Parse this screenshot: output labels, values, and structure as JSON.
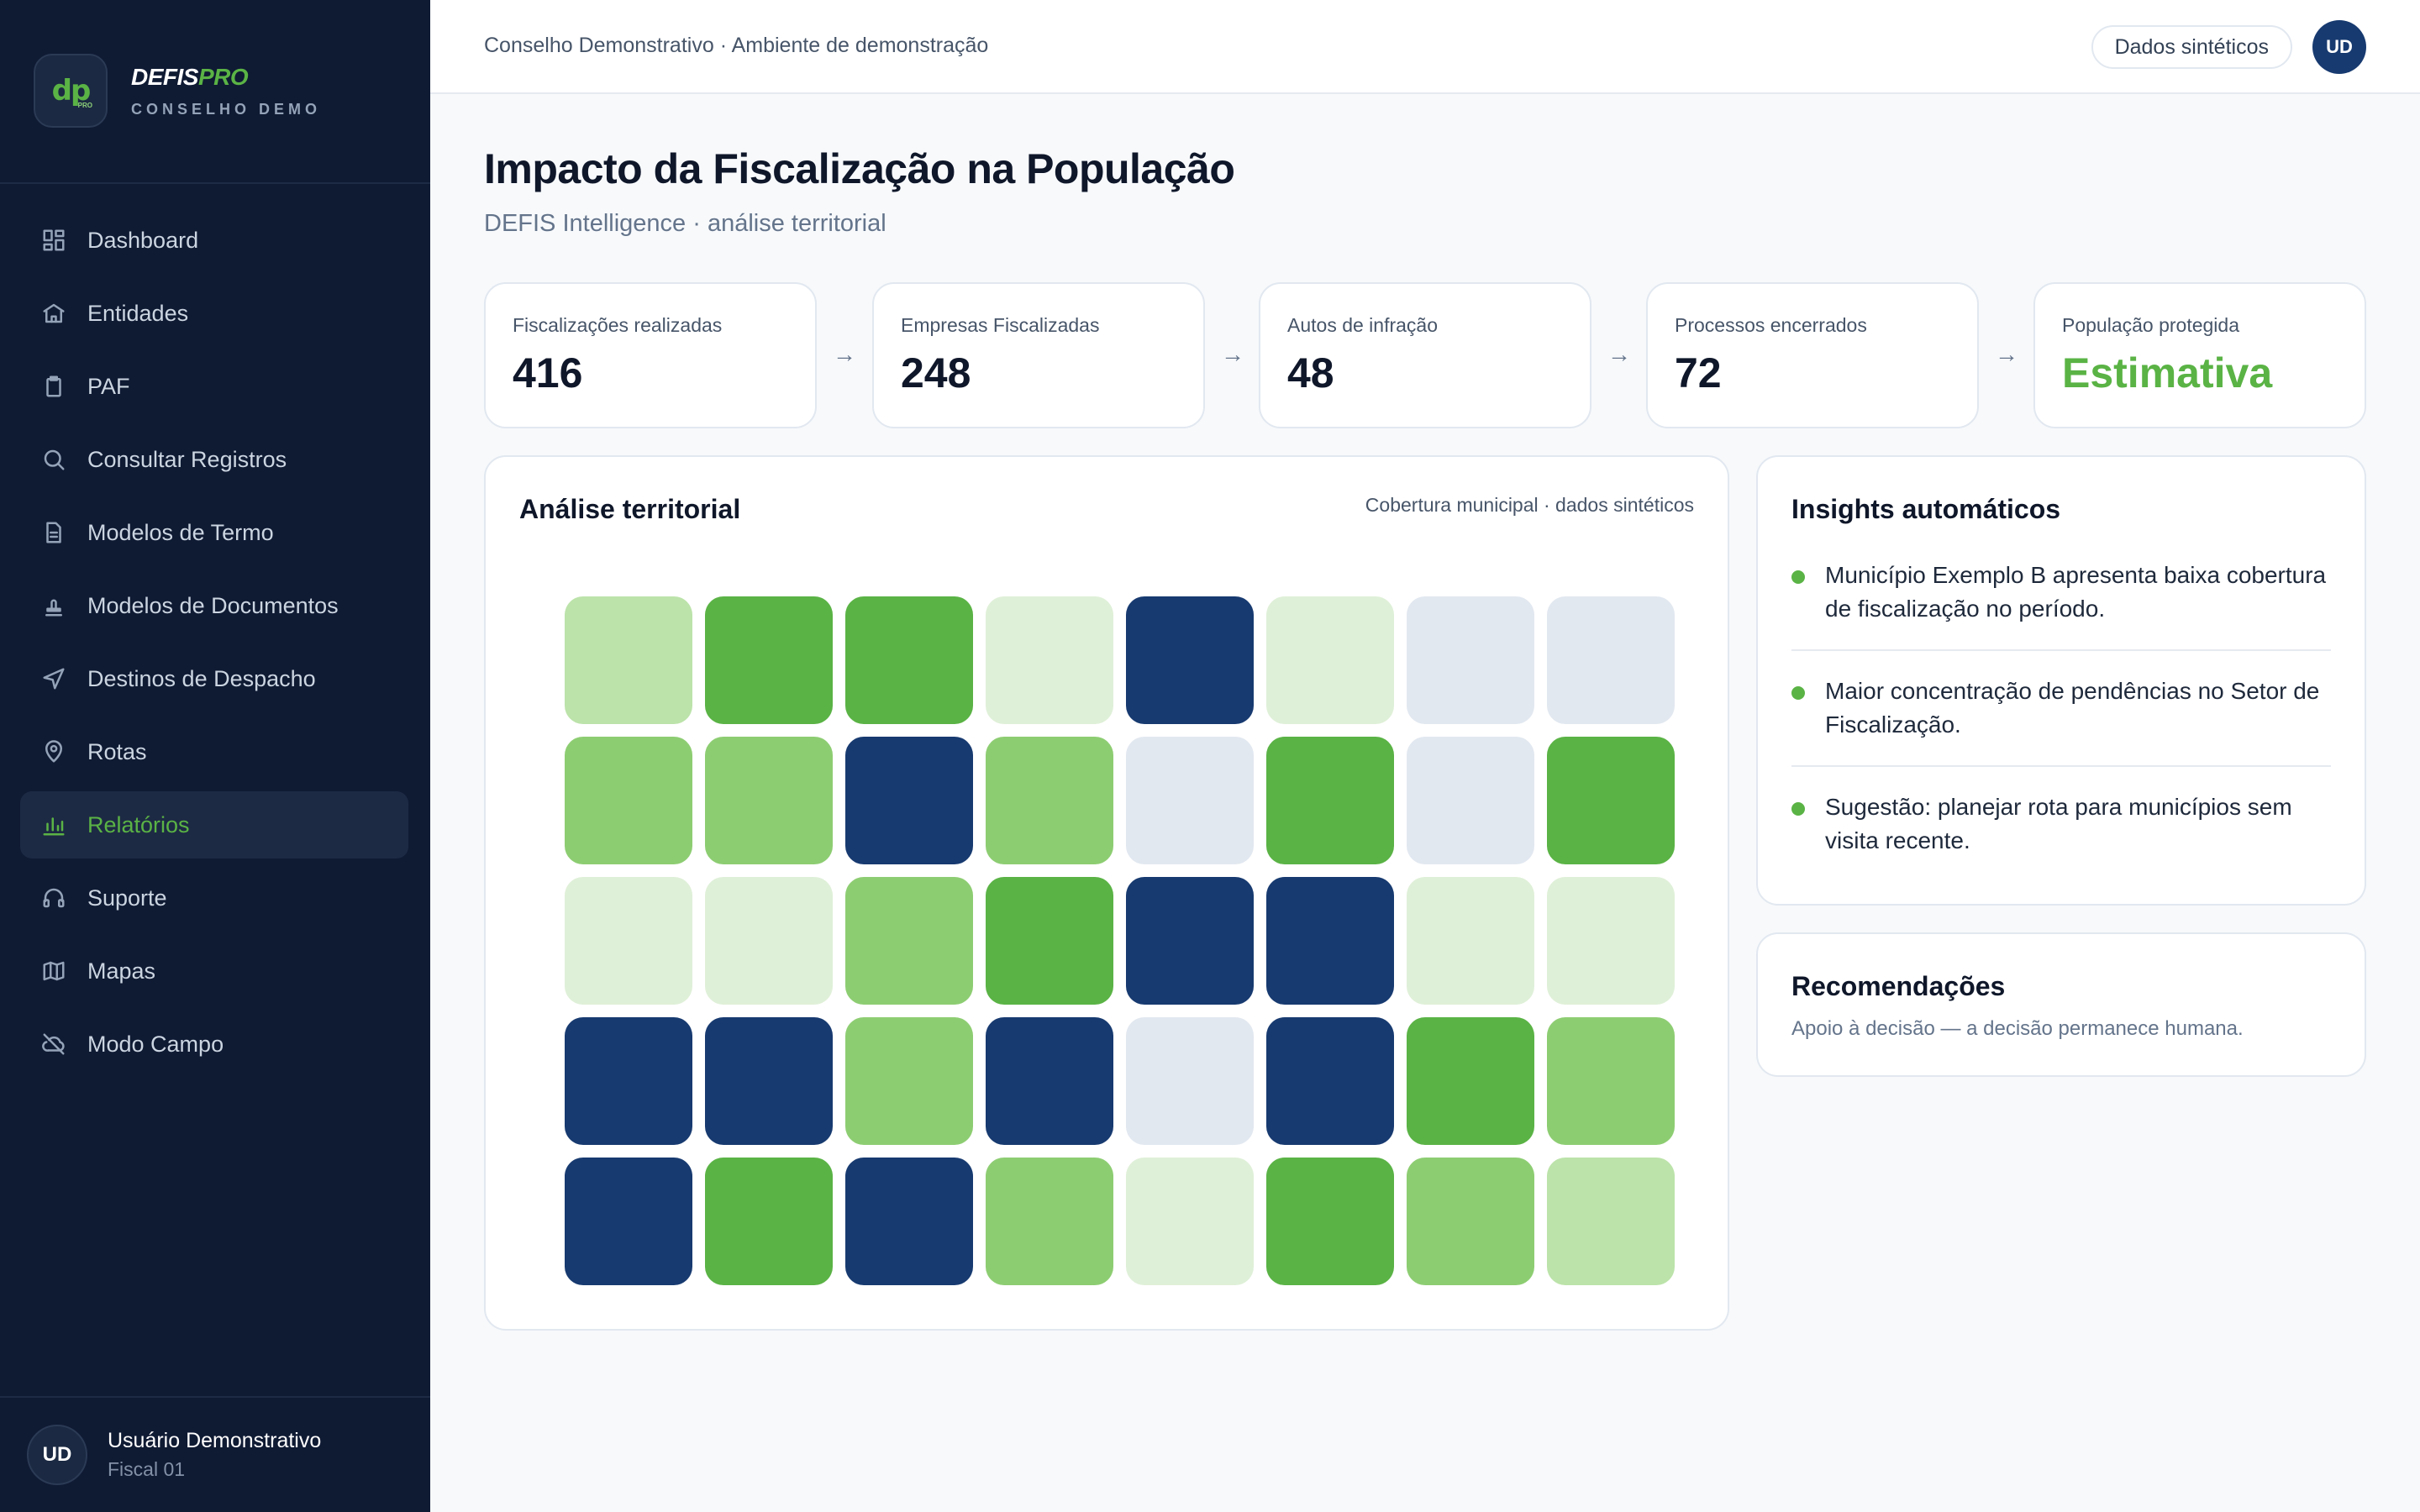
{
  "brand": {
    "logo_text": "dp",
    "logo_mini": "PRO",
    "name_main": "DEFIS",
    "name_accent": "PRO",
    "subtitle": "CONSELHO DEMO"
  },
  "nav": {
    "items": [
      {
        "label": "Dashboard",
        "icon": "dashboard-icon",
        "active": false
      },
      {
        "label": "Entidades",
        "icon": "building-icon",
        "active": false
      },
      {
        "label": "PAF",
        "icon": "clipboard-icon",
        "active": false
      },
      {
        "label": "Consultar Registros",
        "icon": "search-icon",
        "active": false
      },
      {
        "label": "Modelos de Termo",
        "icon": "document-icon",
        "active": false
      },
      {
        "label": "Modelos de Documentos",
        "icon": "stamp-icon",
        "active": false
      },
      {
        "label": "Destinos de Despacho",
        "icon": "send-icon",
        "active": false
      },
      {
        "label": "Rotas",
        "icon": "map-pin-icon",
        "active": false
      },
      {
        "label": "Relatórios",
        "icon": "bar-chart-icon",
        "active": true
      },
      {
        "label": "Suporte",
        "icon": "headset-icon",
        "active": false
      },
      {
        "label": "Mapas",
        "icon": "map-icon",
        "active": false
      },
      {
        "label": "Modo Campo",
        "icon": "cloud-off-icon",
        "active": false
      }
    ]
  },
  "user": {
    "initials": "UD",
    "name": "Usuário Demonstrativo",
    "role": "Fiscal 01"
  },
  "topbar": {
    "breadcrumb": "Conselho Demonstrativo · Ambiente de demonstração",
    "badge": "Dados sintéticos",
    "avatar": "UD"
  },
  "page": {
    "title": "Impacto da Fiscalização na População",
    "subtitle": "DEFIS Intelligence · análise territorial"
  },
  "kpis": [
    {
      "label": "Fiscalizações realizadas",
      "value": "416"
    },
    {
      "label": "Empresas Fiscalizadas",
      "value": "248"
    },
    {
      "label": "Autos de infração",
      "value": "48"
    },
    {
      "label": "Processos encerrados",
      "value": "72"
    },
    {
      "label": "População protegida",
      "value": "Estimativa"
    }
  ],
  "arrow": "→",
  "map": {
    "title": "Análise territorial",
    "note": "Cobertura municipal · dados sintéticos",
    "palette": {
      "0": "#e2e8f0",
      "1": "#dff0d8",
      "2": "#bce3aa",
      "3": "#8dcd72",
      "4": "#5ab345",
      "5": "#173a70"
    },
    "rows": [
      [
        2,
        4,
        4,
        1,
        5,
        1,
        0,
        0
      ],
      [
        3,
        3,
        5,
        3,
        0,
        4,
        0,
        4
      ],
      [
        1,
        1,
        3,
        4,
        5,
        5,
        1,
        1
      ],
      [
        5,
        5,
        3,
        5,
        0,
        5,
        4,
        3
      ],
      [
        5,
        4,
        5,
        3,
        1,
        4,
        3,
        2
      ]
    ]
  },
  "insights": {
    "title": "Insights automáticos",
    "items": [
      "Município Exemplo B apresenta baixa cobertura de fiscalização no período.",
      "Maior concentração de pendências no Setor de Fiscalização.",
      "Sugestão: planejar rota para municípios sem visita recente."
    ]
  },
  "recommendations": {
    "title": "Recomendações",
    "subtitle": "Apoio à decisão — a decisão permanece humana."
  }
}
